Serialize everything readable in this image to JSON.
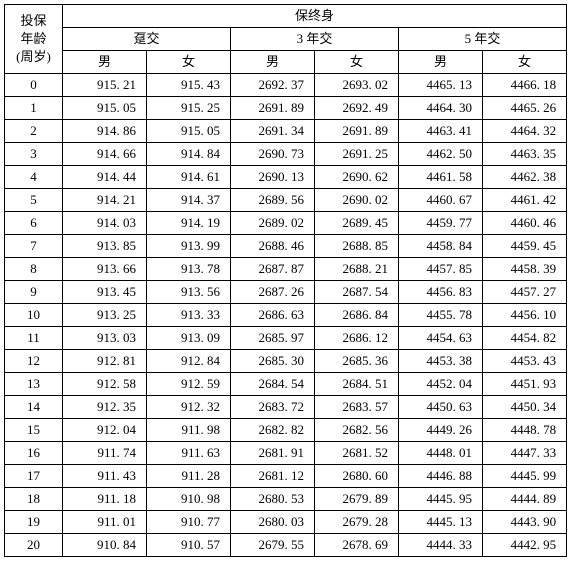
{
  "header": {
    "age_label_l1": "投保",
    "age_label_l2": "年龄",
    "age_label_l3": "(周岁)",
    "top": "保终身",
    "pay_terms": [
      "趸交",
      "3 年交",
      "5 年交"
    ],
    "male": "男",
    "female": "女"
  },
  "rows": [
    {
      "age": "0",
      "v": [
        "915. 21",
        "915. 43",
        "2692. 37",
        "2693. 02",
        "4465. 13",
        "4466. 18"
      ]
    },
    {
      "age": "1",
      "v": [
        "915. 05",
        "915. 25",
        "2691. 89",
        "2692. 49",
        "4464. 30",
        "4465. 26"
      ]
    },
    {
      "age": "2",
      "v": [
        "914. 86",
        "915. 05",
        "2691. 34",
        "2691. 89",
        "4463. 41",
        "4464. 32"
      ]
    },
    {
      "age": "3",
      "v": [
        "914. 66",
        "914. 84",
        "2690. 73",
        "2691. 25",
        "4462. 50",
        "4463. 35"
      ]
    },
    {
      "age": "4",
      "v": [
        "914. 44",
        "914. 61",
        "2690. 13",
        "2690. 62",
        "4461. 58",
        "4462. 38"
      ]
    },
    {
      "age": "5",
      "v": [
        "914. 21",
        "914. 37",
        "2689. 56",
        "2690. 02",
        "4460. 67",
        "4461. 42"
      ]
    },
    {
      "age": "6",
      "v": [
        "914. 03",
        "914. 19",
        "2689. 02",
        "2689. 45",
        "4459. 77",
        "4460. 46"
      ]
    },
    {
      "age": "7",
      "v": [
        "913. 85",
        "913. 99",
        "2688. 46",
        "2688. 85",
        "4458. 84",
        "4459. 45"
      ]
    },
    {
      "age": "8",
      "v": [
        "913. 66",
        "913. 78",
        "2687. 87",
        "2688. 21",
        "4457. 85",
        "4458. 39"
      ]
    },
    {
      "age": "9",
      "v": [
        "913. 45",
        "913. 56",
        "2687. 26",
        "2687. 54",
        "4456. 83",
        "4457. 27"
      ]
    },
    {
      "age": "10",
      "v": [
        "913. 25",
        "913. 33",
        "2686. 63",
        "2686. 84",
        "4455. 78",
        "4456. 10"
      ]
    },
    {
      "age": "11",
      "v": [
        "913. 03",
        "913. 09",
        "2685. 97",
        "2686. 12",
        "4454. 63",
        "4454. 82"
      ]
    },
    {
      "age": "12",
      "v": [
        "912. 81",
        "912. 84",
        "2685. 30",
        "2685. 36",
        "4453. 38",
        "4453. 43"
      ]
    },
    {
      "age": "13",
      "v": [
        "912. 58",
        "912. 59",
        "2684. 54",
        "2684. 51",
        "4452. 04",
        "4451. 93"
      ]
    },
    {
      "age": "14",
      "v": [
        "912. 35",
        "912. 32",
        "2683. 72",
        "2683. 57",
        "4450. 63",
        "4450. 34"
      ]
    },
    {
      "age": "15",
      "v": [
        "912. 04",
        "911. 98",
        "2682. 82",
        "2682. 56",
        "4449. 26",
        "4448. 78"
      ]
    },
    {
      "age": "16",
      "v": [
        "911. 74",
        "911. 63",
        "2681. 91",
        "2681. 52",
        "4448. 01",
        "4447. 33"
      ]
    },
    {
      "age": "17",
      "v": [
        "911. 43",
        "911. 28",
        "2681. 12",
        "2680. 60",
        "4446. 88",
        "4445. 99"
      ]
    },
    {
      "age": "18",
      "v": [
        "911. 18",
        "910. 98",
        "2680. 53",
        "2679. 89",
        "4445. 95",
        "4444. 89"
      ]
    },
    {
      "age": "19",
      "v": [
        "911. 01",
        "910. 77",
        "2680. 03",
        "2679. 28",
        "4445. 13",
        "4443. 90"
      ]
    },
    {
      "age": "20",
      "v": [
        "910. 84",
        "910. 57",
        "2679. 55",
        "2678. 69",
        "4444. 33",
        "4442. 95"
      ]
    }
  ]
}
